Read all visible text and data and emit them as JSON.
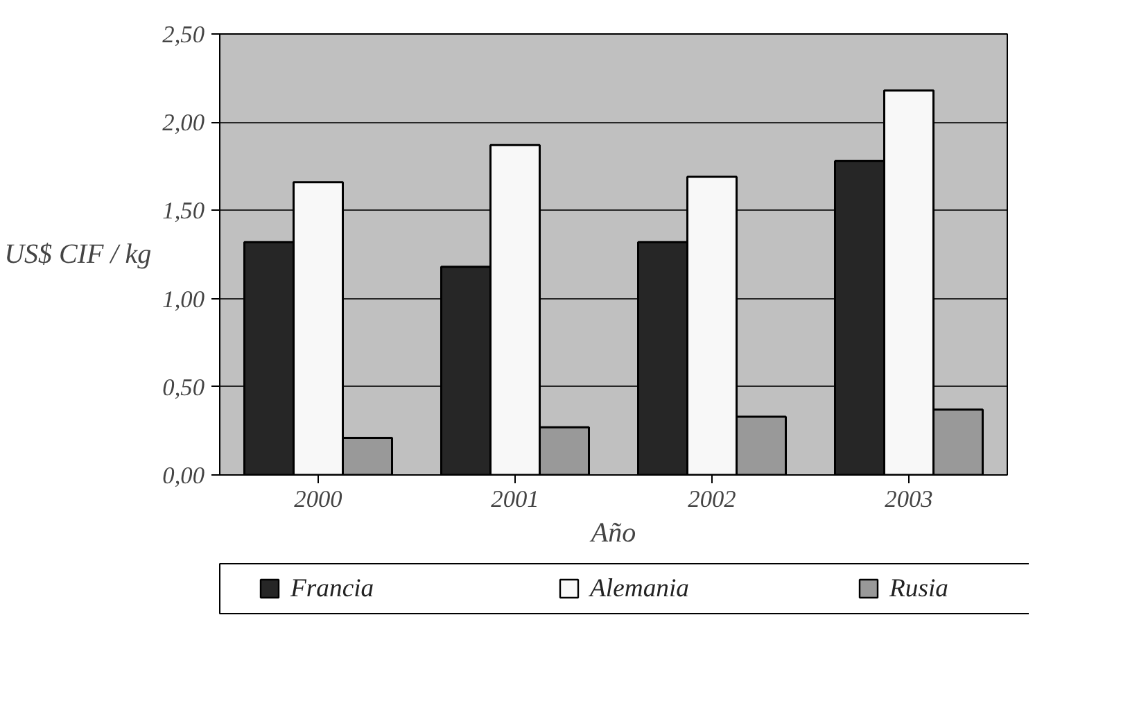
{
  "chart_data": {
    "type": "bar",
    "xlabel": "Año",
    "ylabel": "US$ CIF / kg",
    "categories": [
      "2000",
      "2001",
      "2002",
      "2003"
    ],
    "series": [
      {
        "name": "Francia",
        "color": "#262626",
        "values": [
          1.32,
          1.18,
          1.32,
          1.78
        ]
      },
      {
        "name": "Alemania",
        "color": "#f8f8f8",
        "values": [
          1.66,
          1.87,
          1.69,
          2.18
        ]
      },
      {
        "name": "Rusia",
        "color": "#999999",
        "values": [
          0.21,
          0.27,
          0.33,
          0.37
        ]
      }
    ],
    "ylim": [
      0,
      2.5
    ],
    "yticks": [
      {
        "value": 0,
        "label": "0,00"
      },
      {
        "value": 0.5,
        "label": "0,50"
      },
      {
        "value": 1,
        "label": "1,00"
      },
      {
        "value": 1.5,
        "label": "1,50"
      },
      {
        "value": 2,
        "label": "2,00"
      },
      {
        "value": 2.5,
        "label": "2,50"
      }
    ],
    "grid": "y",
    "legend": "bottom"
  }
}
